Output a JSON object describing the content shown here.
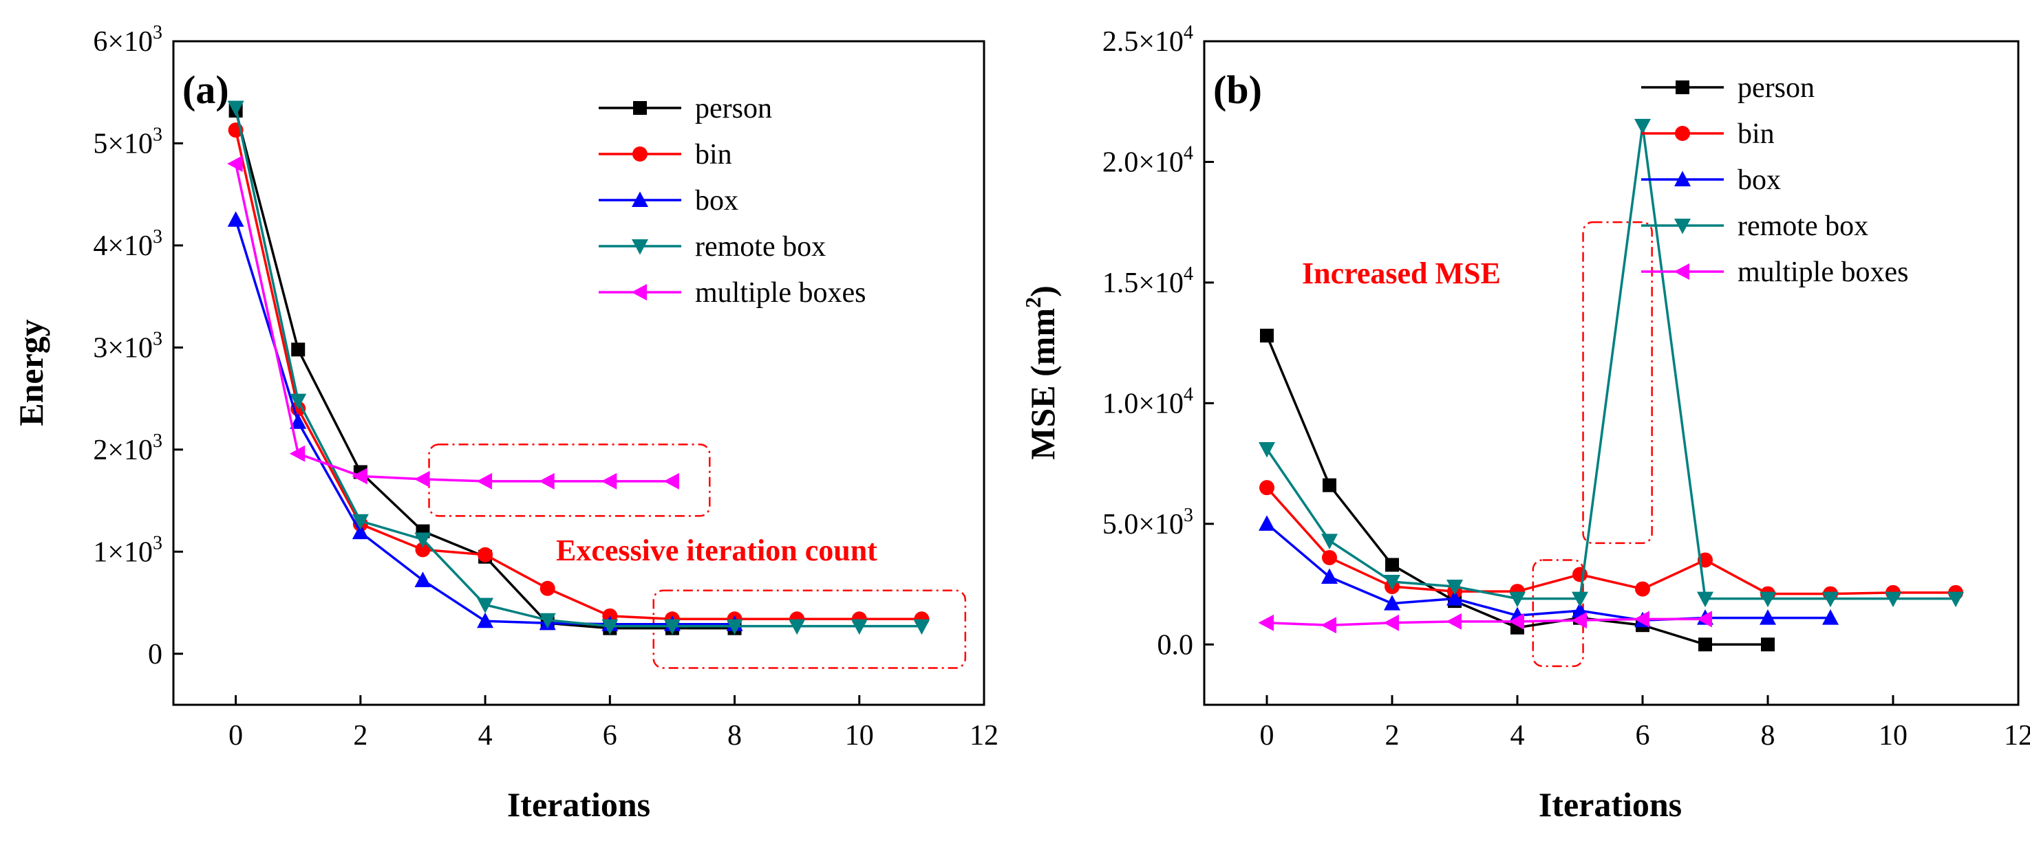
{
  "chart_data": [
    {
      "type": "line",
      "panel_label": "(a)",
      "xlabel": "Iterations",
      "ylabel": "Energy",
      "xlim": [
        -1,
        12
      ],
      "ylim": [
        -500,
        6000
      ],
      "xticks": [
        0,
        2,
        4,
        6,
        8,
        10,
        12
      ],
      "xtick_labels": [
        "0",
        "2",
        "4",
        "6",
        "8",
        "10",
        "12"
      ],
      "yticks": [
        0,
        1000,
        2000,
        3000,
        4000,
        5000,
        6000
      ],
      "ytick_labels": [
        {
          "mant": "0",
          "exp": ""
        },
        {
          "mant": "1×10",
          "exp": "3"
        },
        {
          "mant": "2×10",
          "exp": "3"
        },
        {
          "mant": "3×10",
          "exp": "3"
        },
        {
          "mant": "4×10",
          "exp": "3"
        },
        {
          "mant": "5×10",
          "exp": "3"
        },
        {
          "mant": "6×10",
          "exp": "3"
        }
      ],
      "legend_position": "top-right",
      "series": [
        {
          "name": "person",
          "color": "#000000",
          "marker": "square",
          "x": [
            0,
            1,
            2,
            3,
            4,
            5,
            6,
            7,
            8
          ],
          "y": [
            5320,
            2980,
            1780,
            1200,
            950,
            300,
            250,
            250,
            250
          ]
        },
        {
          "name": "bin",
          "color": "#ff0000",
          "marker": "circle",
          "x": [
            0,
            1,
            2,
            3,
            4,
            5,
            6,
            7,
            8,
            9,
            10,
            11
          ],
          "y": [
            5130,
            2400,
            1270,
            1020,
            970,
            640,
            370,
            340,
            340,
            340,
            340,
            340
          ]
        },
        {
          "name": "box",
          "color": "#0000ff",
          "marker": "triangle-up",
          "x": [
            0,
            1,
            2,
            3,
            4,
            5,
            6,
            7,
            8
          ],
          "y": [
            4250,
            2270,
            1190,
            720,
            320,
            300,
            290,
            290,
            290
          ]
        },
        {
          "name": "remote box",
          "color": "#008080",
          "marker": "triangle-down",
          "x": [
            0,
            1,
            2,
            3,
            4,
            5,
            6,
            7,
            8,
            9,
            10,
            11
          ],
          "y": [
            5350,
            2480,
            1300,
            1120,
            480,
            330,
            270,
            270,
            270,
            270,
            270,
            270
          ]
        },
        {
          "name": "multiple boxes",
          "color": "#ff00ff",
          "marker": "triangle-left",
          "x": [
            0,
            1,
            2,
            3,
            4,
            5,
            6,
            7
          ],
          "y": [
            4800,
            1960,
            1740,
            1710,
            1690,
            1690,
            1690,
            1690
          ]
        }
      ],
      "annotations": [
        {
          "text": "Excessive iteration count",
          "color": "#ff0000"
        }
      ],
      "highlight_boxes": [
        {
          "x": [
            3.1,
            7.6
          ],
          "y": [
            1350,
            2050
          ]
        },
        {
          "x": [
            6.7,
            11.7
          ],
          "y": [
            -140,
            620
          ]
        }
      ]
    },
    {
      "type": "line",
      "panel_label": "(b)",
      "xlabel": "Iterations",
      "ylabel": "MSE (mm",
      "ylabel_sup": "2",
      "ylabel_close": ")",
      "xlim": [
        -1,
        12
      ],
      "ylim": [
        -2500,
        25000
      ],
      "xticks": [
        0,
        2,
        4,
        6,
        8,
        10,
        12
      ],
      "xtick_labels": [
        "0",
        "2",
        "4",
        "6",
        "8",
        "10",
        "12"
      ],
      "yticks": [
        0,
        5000,
        10000,
        15000,
        20000,
        25000
      ],
      "ytick_labels": [
        {
          "mant": "0.0",
          "exp": ""
        },
        {
          "mant": "5.0×10",
          "exp": "3"
        },
        {
          "mant": "1.0×10",
          "exp": "4"
        },
        {
          "mant": "1.5×10",
          "exp": "4"
        },
        {
          "mant": "2.0×10",
          "exp": "4"
        },
        {
          "mant": "2.5×10",
          "exp": "4"
        }
      ],
      "legend_position": "top-right",
      "series": [
        {
          "name": "person",
          "color": "#000000",
          "marker": "square",
          "x": [
            0,
            1,
            2,
            3,
            4,
            5,
            6,
            7,
            8
          ],
          "y": [
            12800,
            6600,
            3300,
            1800,
            700,
            1100,
            800,
            0,
            0
          ]
        },
        {
          "name": "bin",
          "color": "#ff0000",
          "marker": "circle",
          "x": [
            0,
            1,
            2,
            3,
            4,
            5,
            6,
            7,
            8,
            9,
            10,
            11
          ],
          "y": [
            6500,
            3600,
            2400,
            2200,
            2200,
            2900,
            2300,
            3500,
            2100,
            2100,
            2150,
            2150
          ]
        },
        {
          "name": "box",
          "color": "#0000ff",
          "marker": "triangle-up",
          "x": [
            0,
            1,
            2,
            3,
            4,
            5,
            6,
            7,
            8,
            9
          ],
          "y": [
            5000,
            2800,
            1700,
            1900,
            1200,
            1400,
            1000,
            1100,
            1100,
            1100
          ]
        },
        {
          "name": "remote box",
          "color": "#008080",
          "marker": "triangle-down",
          "x": [
            0,
            1,
            2,
            3,
            4,
            5,
            6,
            7,
            8,
            9,
            10,
            11
          ],
          "y": [
            8100,
            4300,
            2600,
            2400,
            1900,
            1900,
            21500,
            1900,
            1900,
            1900,
            1900,
            1900
          ]
        },
        {
          "name": "multiple boxes",
          "color": "#ff00ff",
          "marker": "triangle-left",
          "x": [
            0,
            1,
            2,
            3,
            4,
            5,
            6,
            7
          ],
          "y": [
            900,
            800,
            900,
            950,
            950,
            1000,
            1050,
            1050
          ]
        }
      ],
      "annotations": [
        {
          "text": "Increased MSE",
          "color": "#ff0000"
        }
      ],
      "highlight_boxes": [
        {
          "x": [
            4.25,
            5.05
          ],
          "y": [
            -900,
            3500
          ]
        },
        {
          "x": [
            5.05,
            6.15
          ],
          "y": [
            4200,
            17500
          ]
        }
      ]
    }
  ]
}
